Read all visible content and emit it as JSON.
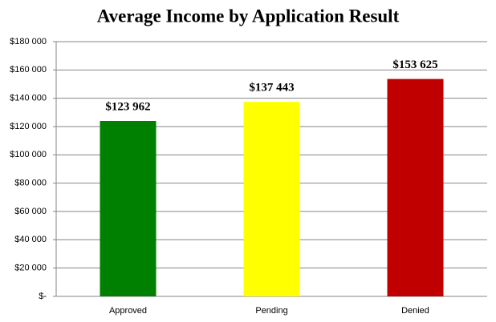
{
  "chart_data": {
    "type": "bar",
    "title": "Average Income by Application Result",
    "categories": [
      "Approved",
      "Pending",
      "Denied"
    ],
    "values": [
      123962,
      137443,
      153625
    ],
    "value_labels": [
      "$123 962",
      "$137 443",
      "$153 625"
    ],
    "colors": [
      "#008000",
      "#ffff00",
      "#c00000"
    ],
    "ylim": [
      0,
      180000
    ],
    "yticks": [
      {
        "value": 0,
        "label": "$-"
      },
      {
        "value": 20000,
        "label": "$20 000"
      },
      {
        "value": 40000,
        "label": "$40 000"
      },
      {
        "value": 60000,
        "label": "$60 000"
      },
      {
        "value": 80000,
        "label": "$80 000"
      },
      {
        "value": 100000,
        "label": "$100 000"
      },
      {
        "value": 120000,
        "label": "$120 000"
      },
      {
        "value": 140000,
        "label": "$140 000"
      },
      {
        "value": 160000,
        "label": "$160 000"
      },
      {
        "value": 180000,
        "label": "$180 000"
      }
    ],
    "grid": true
  }
}
